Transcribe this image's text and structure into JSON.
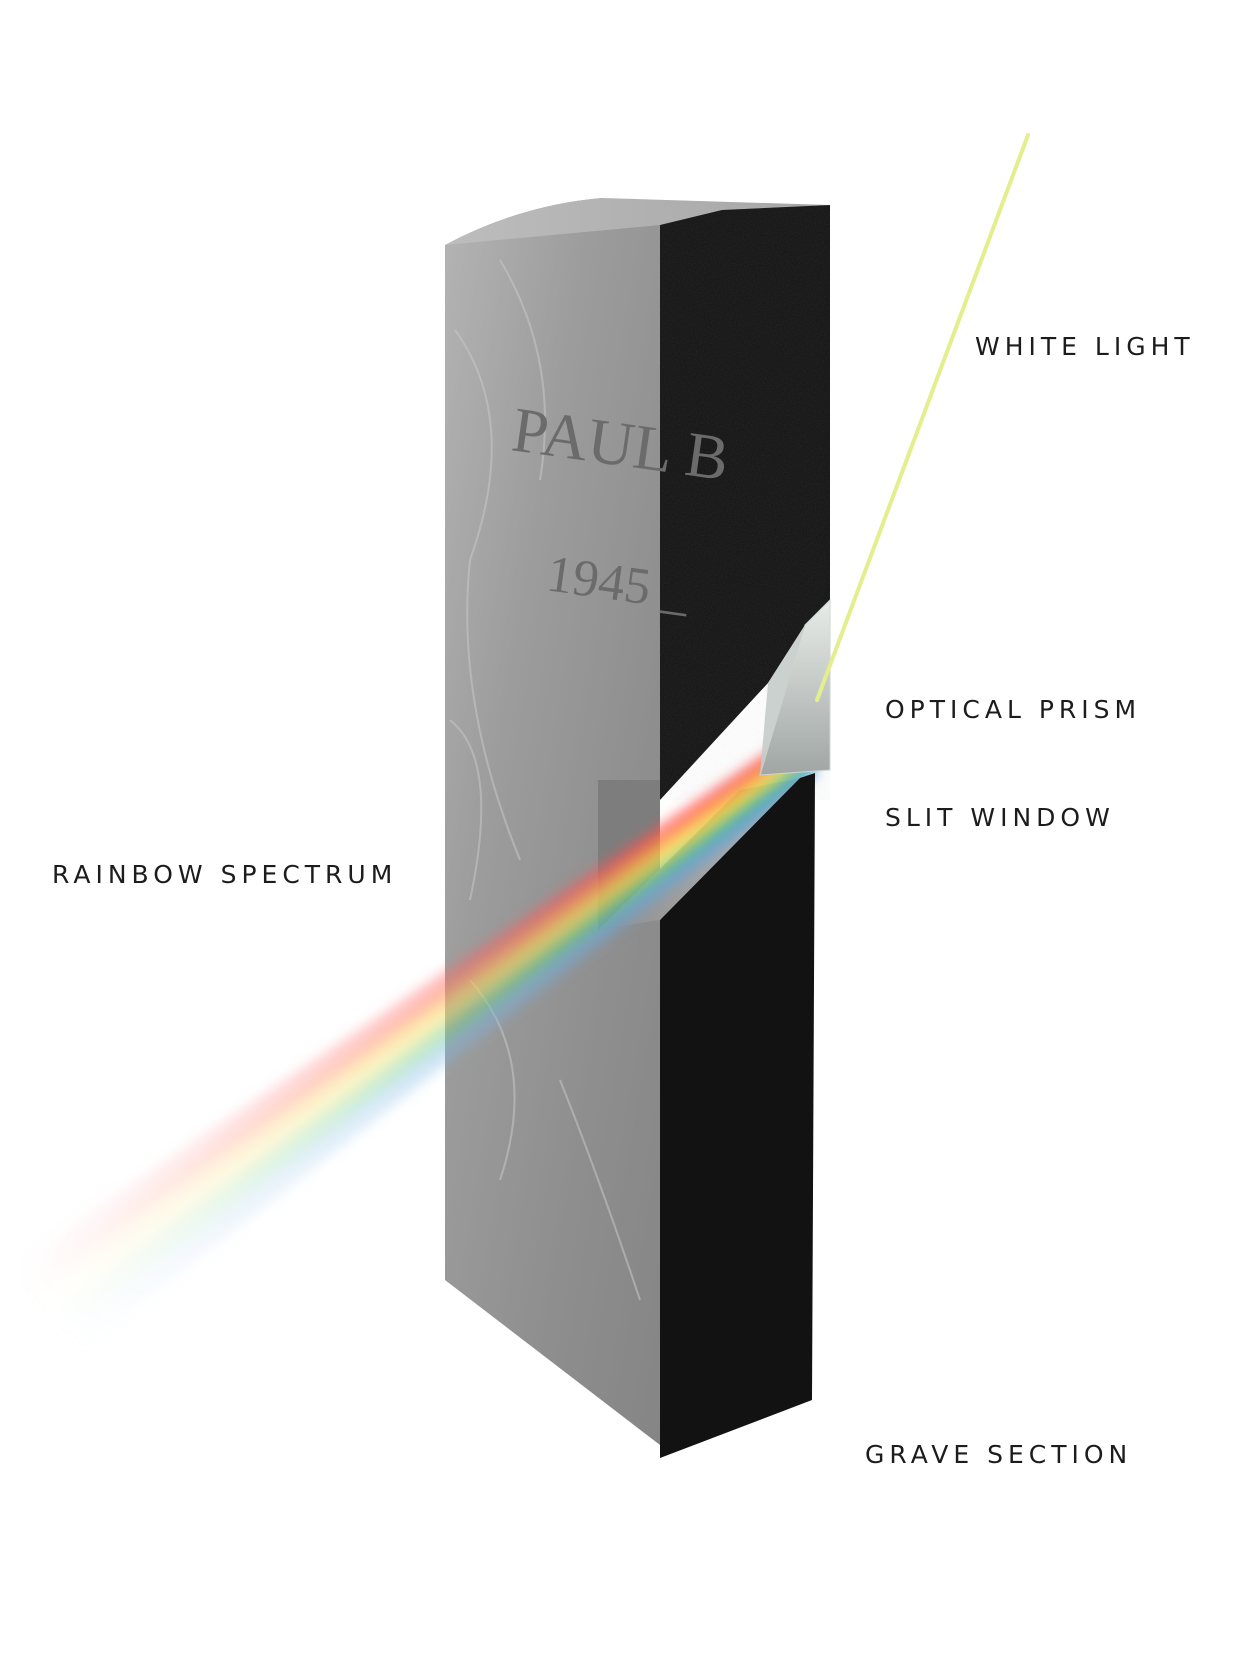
{
  "headstone": {
    "inscription_name": "PAUL B",
    "inscription_year": "1945 _"
  },
  "labels": {
    "white_light": "WHITE LIGHT",
    "optical_prism": "OPTICAL PRISM",
    "slit_window": "SLIT WINDOW",
    "rainbow_spectrum": "RAINBOW SPECTRUM",
    "grave_section": "GRAVE SECTION"
  },
  "colors": {
    "stone_face": "#9a9a9a",
    "granite_section": "#121212",
    "light_beam": "#e4ee8c",
    "label_text": "#1c1c1c"
  }
}
